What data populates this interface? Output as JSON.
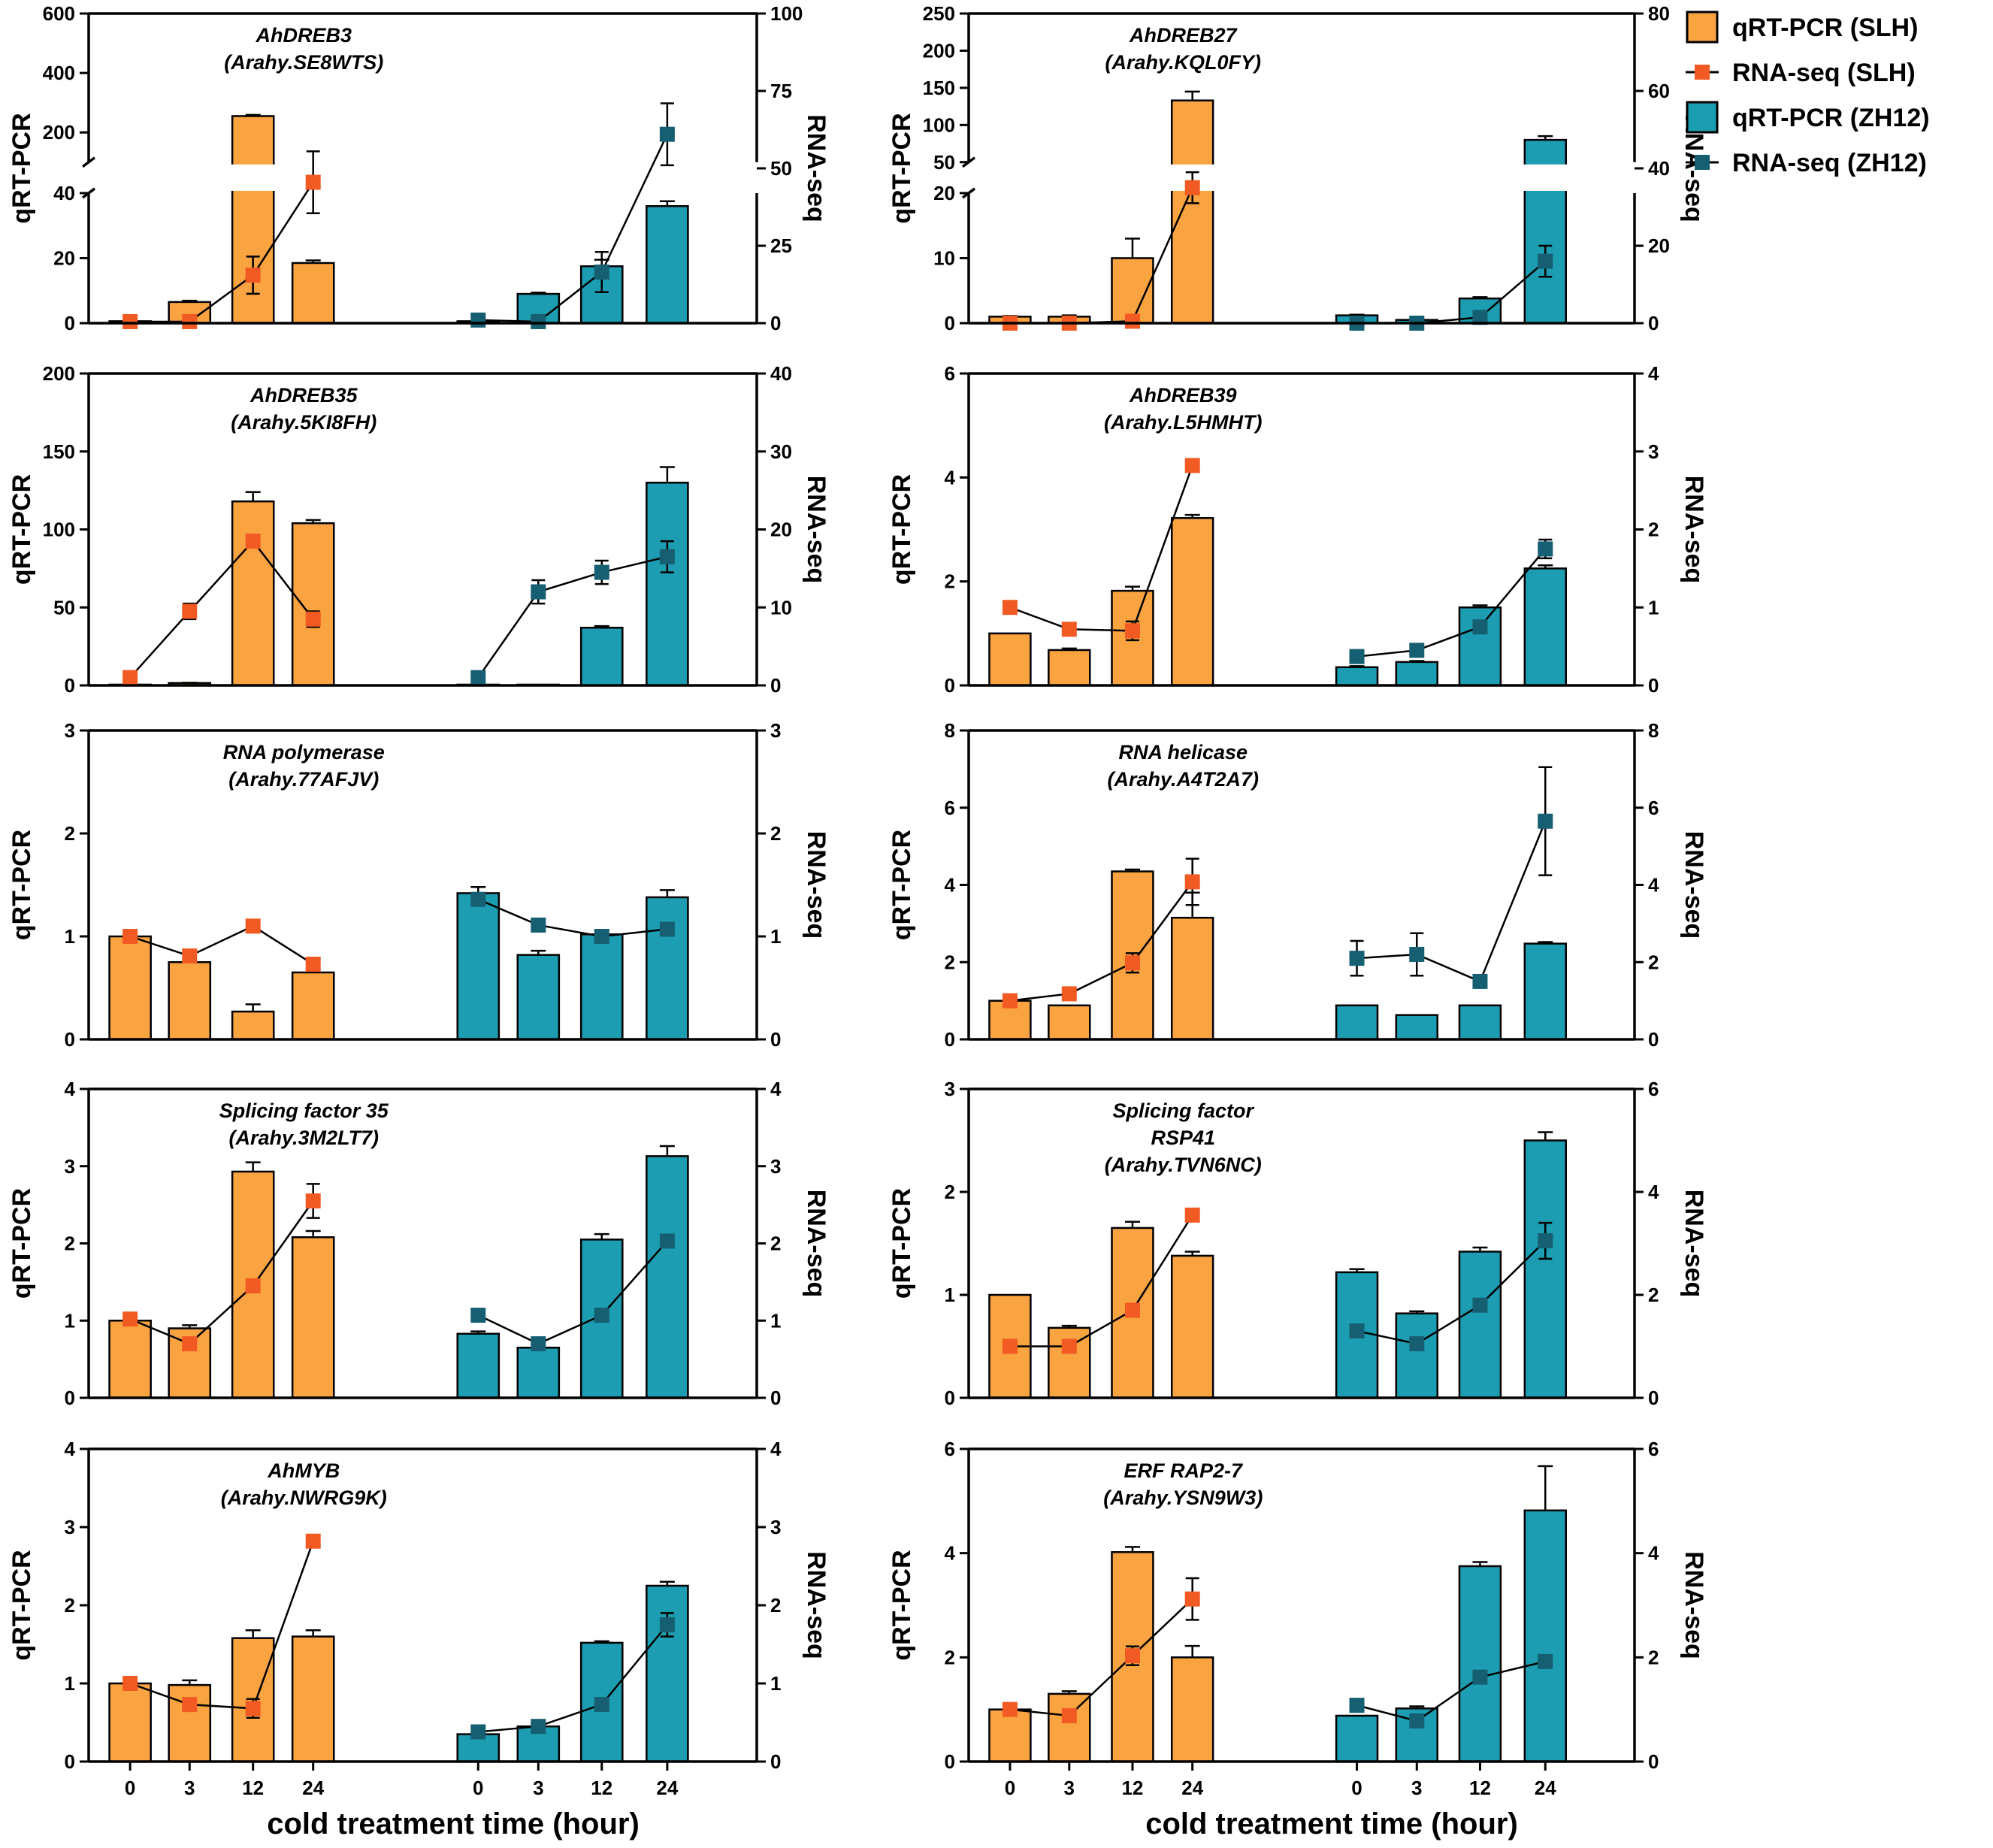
{
  "colors": {
    "slh_bar": "#F9A341",
    "slh_line": "#F15A22",
    "zh12_bar": "#1C9DB1",
    "zh12_line": "#165E71",
    "axis": "#000000"
  },
  "legend": {
    "items": [
      {
        "label": "qRT-PCR (SLH)",
        "kind": "bar",
        "color": "#F9A341"
      },
      {
        "label": "RNA-seq (SLH)",
        "kind": "line",
        "color": "#F15A22"
      },
      {
        "label": "qRT-PCR (ZH12)",
        "kind": "bar",
        "color": "#1C9DB1"
      },
      {
        "label": "RNA-seq (ZH12)",
        "kind": "line",
        "color": "#165E71"
      }
    ]
  },
  "x_axis_title": "cold treatment time (hour)",
  "chart_data": [
    {
      "type": "bar+line",
      "title": "AhDREB3",
      "subtitle": "(Arahy.SE8WTS)",
      "categories": [
        "0",
        "3",
        "12",
        "24"
      ],
      "ylabel": "qRT-PCR",
      "y2label": "RNA-seq",
      "y_axis_break": true,
      "ylim_lower": [
        0,
        40
      ],
      "ylim_upper": [
        100,
        600
      ],
      "yticks_lower": [
        0,
        20,
        40
      ],
      "yticks_upper": [
        200,
        400,
        600
      ],
      "y2lim": [
        0,
        100
      ],
      "y2ticks": [
        0,
        25,
        50,
        75,
        100
      ],
      "series": [
        {
          "name": "qRT-PCR (SLH)",
          "kind": "bar",
          "values": [
            0.6,
            6.5,
            255,
            18.5
          ],
          "errors": [
            0.1,
            0.4,
            4,
            0.8
          ]
        },
        {
          "name": "RNA-seq (SLH)",
          "kind": "line",
          "values": [
            0.5,
            0.5,
            15.5,
            45.5
          ],
          "errors": [
            0,
            0,
            6,
            10
          ]
        },
        {
          "name": "qRT-PCR (ZH12)",
          "kind": "bar",
          "values": [
            0.6,
            9,
            17.5,
            36
          ],
          "errors": [
            0.1,
            0.4,
            2,
            1.5
          ]
        },
        {
          "name": "RNA-seq (ZH12)",
          "kind": "line",
          "values": [
            1,
            0.5,
            16.5,
            61
          ],
          "errors": [
            0,
            0,
            6.5,
            10
          ]
        }
      ]
    },
    {
      "type": "bar+line",
      "title": "AhDREB27",
      "subtitle": "(Arahy.KQL0FY)",
      "categories": [
        "0",
        "3",
        "12",
        "24"
      ],
      "ylabel": "qRT-PCR",
      "y2label": "RNA-seq",
      "y_axis_break": true,
      "ylim_lower": [
        0,
        20
      ],
      "ylim_upper": [
        50,
        250
      ],
      "yticks_lower": [
        0,
        10,
        20
      ],
      "yticks_upper": [
        50,
        100,
        150,
        200,
        250
      ],
      "y2lim": [
        0,
        80
      ],
      "y2ticks": [
        0,
        20,
        40,
        60,
        80
      ],
      "series": [
        {
          "name": "qRT-PCR (SLH)",
          "kind": "bar",
          "values": [
            1,
            1,
            10,
            133
          ],
          "errors": [
            0.1,
            0.2,
            3,
            12
          ]
        },
        {
          "name": "RNA-seq (SLH)",
          "kind": "line",
          "values": [
            0,
            0,
            0.5,
            35
          ],
          "errors": [
            0,
            0,
            0,
            4
          ]
        },
        {
          "name": "qRT-PCR (ZH12)",
          "kind": "bar",
          "values": [
            1.2,
            0.5,
            3.8,
            80
          ],
          "errors": [
            0.1,
            0.1,
            0.2,
            5
          ]
        },
        {
          "name": "RNA-seq (ZH12)",
          "kind": "line",
          "values": [
            0,
            0,
            1.5,
            16
          ],
          "errors": [
            0,
            0,
            0,
            4
          ]
        }
      ]
    },
    {
      "type": "bar+line",
      "title": "AhDREB35",
      "subtitle": "(Arahy.5KI8FH)",
      "categories": [
        "0",
        "3",
        "12",
        "24"
      ],
      "ylabel": "qRT-PCR",
      "y2label": "RNA-seq",
      "ylim": [
        0,
        200
      ],
      "yticks": [
        0,
        50,
        100,
        150,
        200
      ],
      "y2lim": [
        0,
        40
      ],
      "y2ticks": [
        0,
        10,
        20,
        30,
        40
      ],
      "series": [
        {
          "name": "qRT-PCR (SLH)",
          "kind": "bar",
          "values": [
            0.5,
            1.5,
            118,
            104
          ],
          "errors": [
            0,
            0.2,
            6,
            2
          ]
        },
        {
          "name": "RNA-seq (SLH)",
          "kind": "line",
          "values": [
            1,
            9.5,
            18.5,
            8.5
          ],
          "errors": [
            0,
            1,
            0,
            1
          ]
        },
        {
          "name": "qRT-PCR (ZH12)",
          "kind": "bar",
          "values": [
            0.5,
            0.5,
            37,
            130
          ],
          "errors": [
            0,
            0,
            1,
            10
          ]
        },
        {
          "name": "RNA-seq (ZH12)",
          "kind": "line",
          "values": [
            1,
            12,
            14.5,
            16.5
          ],
          "errors": [
            0,
            1.5,
            1.5,
            2
          ]
        }
      ]
    },
    {
      "type": "bar+line",
      "title": "AhDREB39",
      "subtitle": "(Arahy.L5HMHT)",
      "categories": [
        "0",
        "3",
        "12",
        "24"
      ],
      "ylabel": "qRT-PCR",
      "y2label": "RNA-seq",
      "ylim": [
        0,
        6
      ],
      "yticks": [
        0,
        2,
        4,
        6
      ],
      "y2lim": [
        0,
        4
      ],
      "y2ticks": [
        0,
        1,
        2,
        3,
        4
      ],
      "series": [
        {
          "name": "qRT-PCR (SLH)",
          "kind": "bar",
          "values": [
            1,
            0.68,
            1.82,
            3.22
          ],
          "errors": [
            0,
            0.03,
            0.08,
            0.06
          ]
        },
        {
          "name": "RNA-seq (SLH)",
          "kind": "line",
          "values": [
            1.0,
            0.72,
            0.7,
            2.82
          ],
          "errors": [
            0,
            0,
            0.12,
            0.05
          ]
        },
        {
          "name": "qRT-PCR (ZH12)",
          "kind": "bar",
          "values": [
            0.35,
            0.45,
            1.5,
            2.25
          ],
          "errors": [
            0.02,
            0.02,
            0.04,
            0.06
          ]
        },
        {
          "name": "RNA-seq (ZH12)",
          "kind": "line",
          "values": [
            0.37,
            0.45,
            0.75,
            1.75
          ],
          "errors": [
            0,
            0,
            0,
            0.12
          ]
        }
      ]
    },
    {
      "type": "bar+line",
      "title": "RNA polymerase",
      "subtitle": "(Arahy.77AFJV)",
      "categories": [
        "0",
        "3",
        "12",
        "24"
      ],
      "ylabel": "qRT-PCR",
      "y2label": "RNA-seq",
      "ylim": [
        0,
        3
      ],
      "yticks": [
        0,
        1,
        2,
        3
      ],
      "y2lim": [
        0,
        3
      ],
      "y2ticks": [
        0,
        1,
        2,
        3
      ],
      "series": [
        {
          "name": "qRT-PCR (SLH)",
          "kind": "bar",
          "values": [
            1.0,
            0.75,
            0.27,
            0.65
          ],
          "errors": [
            0,
            0,
            0.07,
            0
          ]
        },
        {
          "name": "RNA-seq (SLH)",
          "kind": "line",
          "values": [
            1.0,
            0.81,
            1.1,
            0.73
          ],
          "errors": [
            0,
            0,
            0.04,
            0
          ]
        },
        {
          "name": "qRT-PCR (ZH12)",
          "kind": "bar",
          "values": [
            1.42,
            0.82,
            1.02,
            1.38
          ],
          "errors": [
            0.06,
            0.04,
            0.04,
            0.07
          ]
        },
        {
          "name": "RNA-seq (ZH12)",
          "kind": "line",
          "values": [
            1.36,
            1.11,
            1.0,
            1.07
          ],
          "errors": [
            0.06,
            0,
            0.05,
            0
          ]
        }
      ]
    },
    {
      "type": "bar+line",
      "title": "RNA helicase",
      "subtitle": "(Arahy.A4T2A7)",
      "categories": [
        "0",
        "3",
        "12",
        "24"
      ],
      "ylabel": "qRT-PCR",
      "y2label": "RNA-seq",
      "ylim": [
        0,
        8
      ],
      "yticks": [
        0,
        2,
        4,
        6,
        8
      ],
      "y2lim": [
        0,
        8
      ],
      "y2ticks": [
        0,
        2,
        4,
        6,
        8
      ],
      "series": [
        {
          "name": "qRT-PCR (SLH)",
          "kind": "bar",
          "values": [
            1.0,
            0.88,
            4.35,
            3.15
          ],
          "errors": [
            0,
            0,
            0.05,
            0.65
          ]
        },
        {
          "name": "RNA-seq (SLH)",
          "kind": "line",
          "values": [
            1.0,
            1.18,
            1.98,
            4.08
          ],
          "errors": [
            0,
            0,
            0.25,
            0.6
          ]
        },
        {
          "name": "qRT-PCR (ZH12)",
          "kind": "bar",
          "values": [
            0.88,
            0.63,
            0.88,
            2.48
          ],
          "errors": [
            0,
            0,
            0,
            0.04
          ]
        },
        {
          "name": "RNA-seq (ZH12)",
          "kind": "line",
          "values": [
            2.1,
            2.2,
            1.5,
            5.65
          ],
          "errors": [
            0.45,
            0.55,
            0.15,
            1.4
          ]
        }
      ]
    },
    {
      "type": "bar+line",
      "title": "Splicing factor 35",
      "subtitle": "(Arahy.3M2LT7)",
      "categories": [
        "0",
        "3",
        "12",
        "24"
      ],
      "ylabel": "qRT-PCR",
      "y2label": "RNA-seq",
      "ylim": [
        0,
        4
      ],
      "yticks": [
        0,
        1,
        2,
        3,
        4
      ],
      "y2lim": [
        0,
        4
      ],
      "y2ticks": [
        0,
        1,
        2,
        3,
        4
      ],
      "series": [
        {
          "name": "qRT-PCR (SLH)",
          "kind": "bar",
          "values": [
            1.0,
            0.9,
            2.93,
            2.08
          ],
          "errors": [
            0,
            0.04,
            0.12,
            0.08
          ]
        },
        {
          "name": "RNA-seq (SLH)",
          "kind": "line",
          "values": [
            1.02,
            0.7,
            1.45,
            2.55
          ],
          "errors": [
            0,
            0,
            0.06,
            0.22
          ]
        },
        {
          "name": "qRT-PCR (ZH12)",
          "kind": "bar",
          "values": [
            0.83,
            0.65,
            2.05,
            3.13
          ],
          "errors": [
            0.03,
            0,
            0.07,
            0.13
          ]
        },
        {
          "name": "RNA-seq (ZH12)",
          "kind": "line",
          "values": [
            1.07,
            0.7,
            1.07,
            2.03
          ],
          "errors": [
            0,
            0,
            0,
            0
          ]
        }
      ]
    },
    {
      "type": "bar+line",
      "title": "Splicing factor",
      "title_line2": "RSP41",
      "subtitle": "(Arahy.TVN6NC)",
      "categories": [
        "0",
        "3",
        "12",
        "24"
      ],
      "ylabel": "qRT-PCR",
      "y2label": "RNA-seq",
      "ylim": [
        0,
        3
      ],
      "yticks": [
        0,
        1,
        2,
        3
      ],
      "y2lim": [
        0,
        6
      ],
      "y2ticks": [
        0,
        2,
        4,
        6
      ],
      "series": [
        {
          "name": "qRT-PCR (SLH)",
          "kind": "bar",
          "values": [
            1.0,
            0.68,
            1.65,
            1.38
          ],
          "errors": [
            0,
            0.02,
            0.06,
            0.04
          ]
        },
        {
          "name": "RNA-seq (SLH)",
          "kind": "line",
          "values": [
            1.0,
            1.0,
            1.7,
            3.55
          ],
          "errors": [
            0,
            0,
            0,
            0.1
          ]
        },
        {
          "name": "qRT-PCR (ZH12)",
          "kind": "bar",
          "values": [
            1.22,
            0.82,
            1.42,
            2.5
          ],
          "errors": [
            0.03,
            0.02,
            0.04,
            0.08
          ]
        },
        {
          "name": "RNA-seq (ZH12)",
          "kind": "line",
          "values": [
            1.3,
            1.05,
            1.8,
            3.05
          ],
          "errors": [
            0,
            0,
            0,
            0.35
          ]
        }
      ]
    },
    {
      "type": "bar+line",
      "title": "AhMYB",
      "subtitle": "(Arahy.NWRG9K)",
      "categories": [
        "0",
        "3",
        "12",
        "24"
      ],
      "ylabel": "qRT-PCR",
      "y2label": "RNA-seq",
      "ylim": [
        0,
        4
      ],
      "yticks": [
        0,
        1,
        2,
        3,
        4
      ],
      "y2lim": [
        0,
        4
      ],
      "y2ticks": [
        0,
        1,
        2,
        3,
        4
      ],
      "series": [
        {
          "name": "qRT-PCR (SLH)",
          "kind": "bar",
          "values": [
            1.0,
            0.98,
            1.58,
            1.6
          ],
          "errors": [
            0,
            0.06,
            0.1,
            0.08
          ]
        },
        {
          "name": "RNA-seq (SLH)",
          "kind": "line",
          "values": [
            1.0,
            0.73,
            0.68,
            2.82
          ],
          "errors": [
            0,
            0,
            0.12,
            0
          ]
        },
        {
          "name": "qRT-PCR (ZH12)",
          "kind": "bar",
          "values": [
            0.35,
            0.45,
            1.52,
            2.25
          ],
          "errors": [
            0.02,
            0.02,
            0.02,
            0.05
          ]
        },
        {
          "name": "RNA-seq (ZH12)",
          "kind": "line",
          "values": [
            0.38,
            0.45,
            0.73,
            1.75
          ],
          "errors": [
            0,
            0,
            0,
            0.15
          ]
        }
      ]
    },
    {
      "type": "bar+line",
      "title": "ERF RAP2-7",
      "subtitle": "(Arahy.YSN9W3)",
      "categories": [
        "0",
        "3",
        "12",
        "24"
      ],
      "ylabel": "qRT-PCR",
      "y2label": "RNA-seq",
      "ylim": [
        0,
        6
      ],
      "yticks": [
        0,
        2,
        4,
        6
      ],
      "y2lim": [
        0,
        6
      ],
      "y2ticks": [
        0,
        2,
        4,
        6
      ],
      "series": [
        {
          "name": "qRT-PCR (SLH)",
          "kind": "bar",
          "values": [
            1.0,
            1.3,
            4.02,
            2.0
          ],
          "errors": [
            0,
            0.05,
            0.1,
            0.22
          ]
        },
        {
          "name": "RNA-seq (SLH)",
          "kind": "line",
          "values": [
            1.0,
            0.88,
            2.03,
            3.12
          ],
          "errors": [
            0,
            0,
            0.18,
            0.4
          ]
        },
        {
          "name": "qRT-PCR (ZH12)",
          "kind": "bar",
          "values": [
            0.88,
            1.02,
            3.75,
            4.82
          ],
          "errors": [
            0,
            0.04,
            0.08,
            0.85
          ]
        },
        {
          "name": "RNA-seq (ZH12)",
          "kind": "line",
          "values": [
            1.08,
            0.78,
            1.62,
            1.92
          ],
          "errors": [
            0,
            0,
            0.12,
            0
          ]
        }
      ]
    }
  ]
}
